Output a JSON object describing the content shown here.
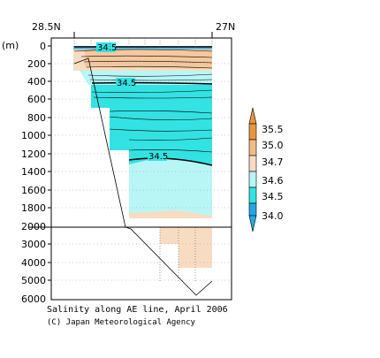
{
  "chart_data": {
    "type": "contour",
    "top_axis": {
      "left_label": "28.5N",
      "right_label": "27N"
    },
    "y_unit_label": "(m)",
    "y_ticks_upper": [
      0,
      200,
      400,
      600,
      800,
      1000,
      1200,
      1400,
      1600,
      1800,
      2000
    ],
    "y_ticks_lower": [
      2000,
      3000,
      4000,
      5000,
      6000
    ],
    "contour_labels": [
      {
        "text": "34.5",
        "depth": 20
      },
      {
        "text": "34.5",
        "depth": 420
      },
      {
        "text": "34.5",
        "depth": 1260
      }
    ],
    "colorbar": {
      "labels": [
        "35.5",
        "35.0",
        "34.7",
        "34.6",
        "34.5",
        "34.0"
      ],
      "colors": [
        "#e8963c",
        "#f3bb86",
        "#f8dcc2",
        "#b8f6f6",
        "#33e2e2",
        "#22a8e4"
      ]
    },
    "caption": {
      "line1": "Salinity along AE line, April 2006",
      "line2": "(C) Japan Meteorological Agency"
    }
  }
}
